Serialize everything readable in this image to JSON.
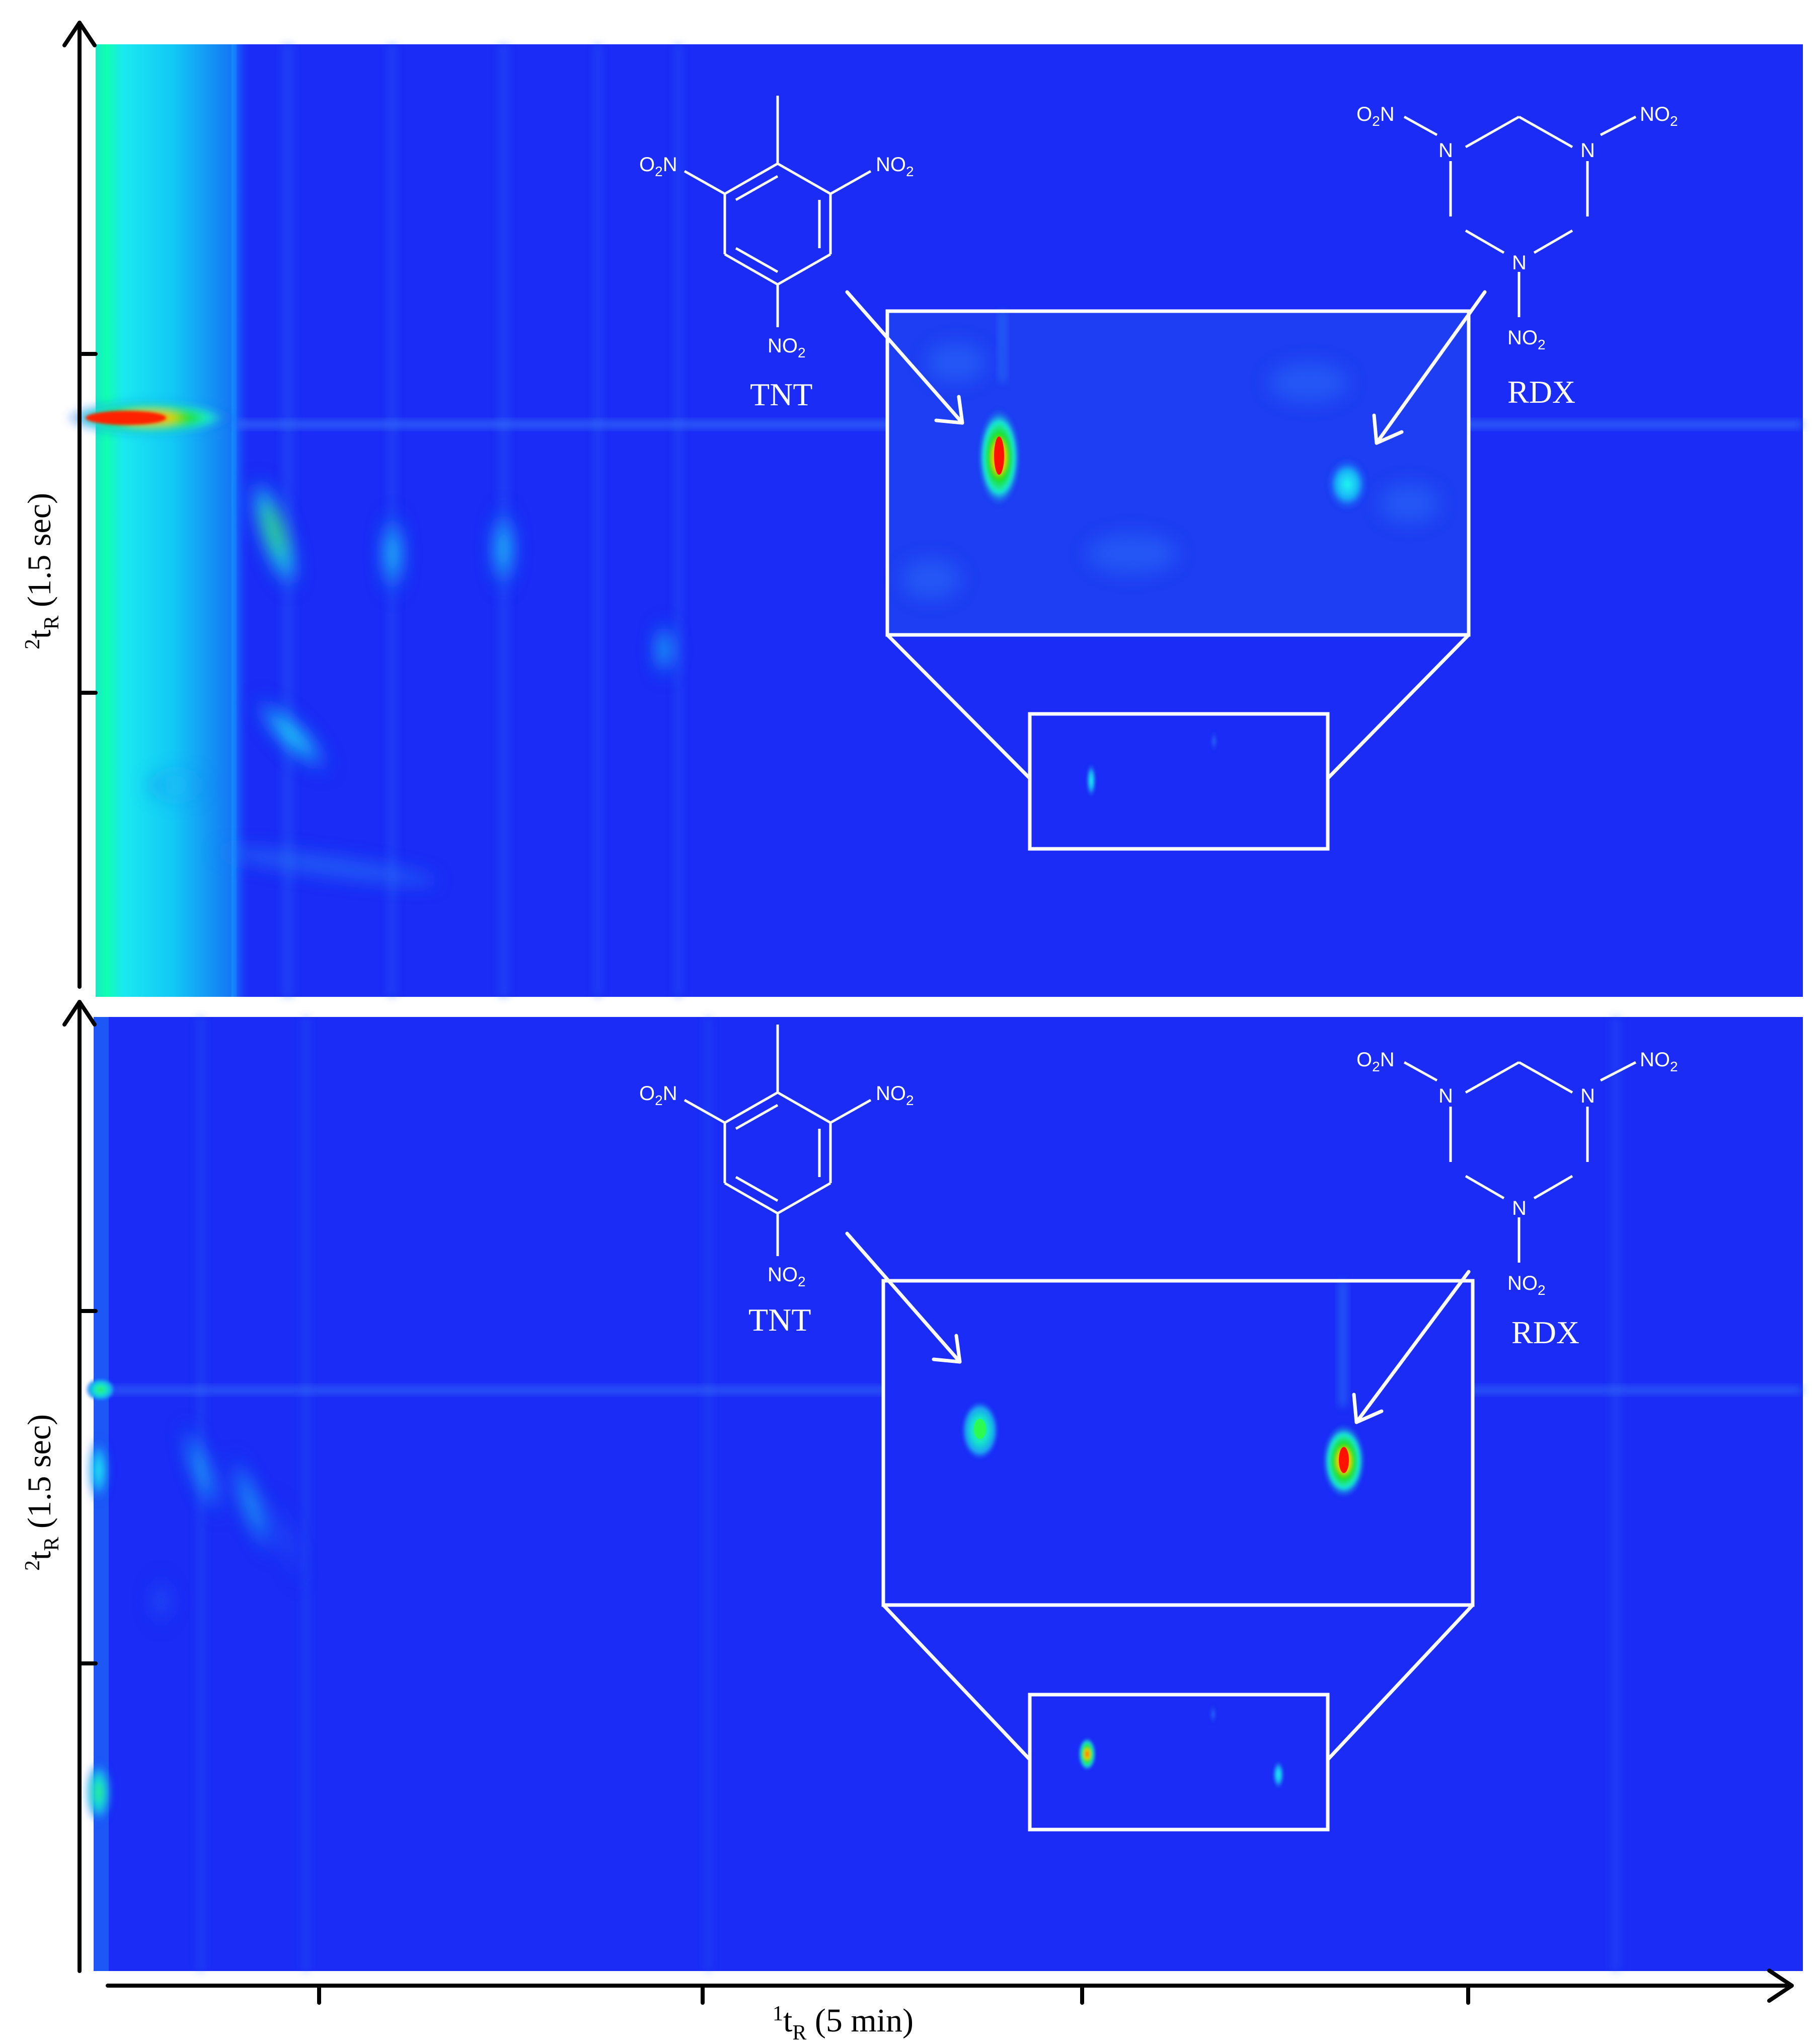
{
  "chart_data": {
    "type": "heatmap",
    "figure": "GC×GC chromatograms (two panels)",
    "colormap": [
      "#0000ff",
      "#00ffff",
      "#00ff00",
      "#ffff00",
      "#ff0000"
    ],
    "background_color": "#1a2cf5",
    "y_axis_title": {
      "sup": "2",
      "main": "t",
      "sub": "R",
      "rest": " (1.5 sec)"
    },
    "x_axis_title": {
      "sup": "1",
      "main": "t",
      "sub": "R",
      "rest": " (5 min)"
    },
    "compounds": {
      "tnt": {
        "name": "TNT",
        "groups": {
          "left": "O",
          "left_sub": "2",
          "left_end": "N",
          "right": "NO",
          "right_sub": "2",
          "bottom": "NO",
          "bottom_sub": "2"
        }
      },
      "rdx": {
        "name": "RDX",
        "groups": {
          "left": "O",
          "left_sub": "2",
          "left_end": "N",
          "right": "NO",
          "right_sub": "2",
          "bottom": "NO",
          "bottom_sub": "2"
        },
        "ring_atom": "N"
      }
    },
    "panels": [
      {
        "id": "top",
        "tnt_intensity": "high",
        "rdx_intensity": "low"
      },
      {
        "id": "bottom",
        "tnt_intensity": "medium",
        "rdx_intensity": "high"
      }
    ]
  }
}
